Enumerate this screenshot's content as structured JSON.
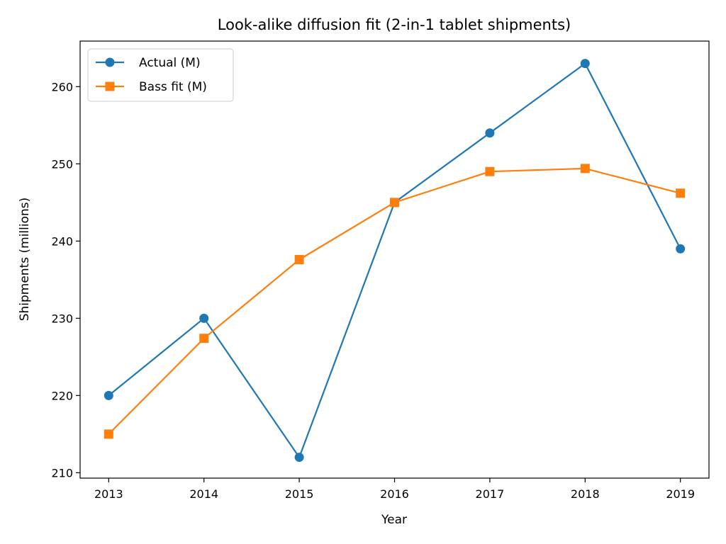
{
  "chart_data": {
    "type": "line",
    "title": "Look-alike diffusion fit (2-in-1 tablet shipments)",
    "xlabel": "Year",
    "ylabel": "Shipments (millions)",
    "x": [
      2013,
      2014,
      2015,
      2016,
      2017,
      2018,
      2019
    ],
    "xticks": [
      "2013",
      "2014",
      "2015",
      "2016",
      "2017",
      "2018",
      "2019"
    ],
    "yticks": [
      210,
      220,
      230,
      240,
      250,
      260
    ],
    "ylim": [
      209.3,
      265.9
    ],
    "xlim": [
      2012.7,
      2019.3
    ],
    "grid": false,
    "legend": "top-left",
    "series": [
      {
        "name": "Actual (M)",
        "color": "#1f77b4",
        "marker": "circle",
        "values": [
          220,
          230,
          212,
          245,
          254,
          263,
          239
        ]
      },
      {
        "name": "Bass fit (M)",
        "color": "#ff7f0e",
        "marker": "square",
        "values": [
          215,
          227.4,
          237.6,
          245,
          249,
          249.4,
          246.2
        ]
      }
    ]
  }
}
